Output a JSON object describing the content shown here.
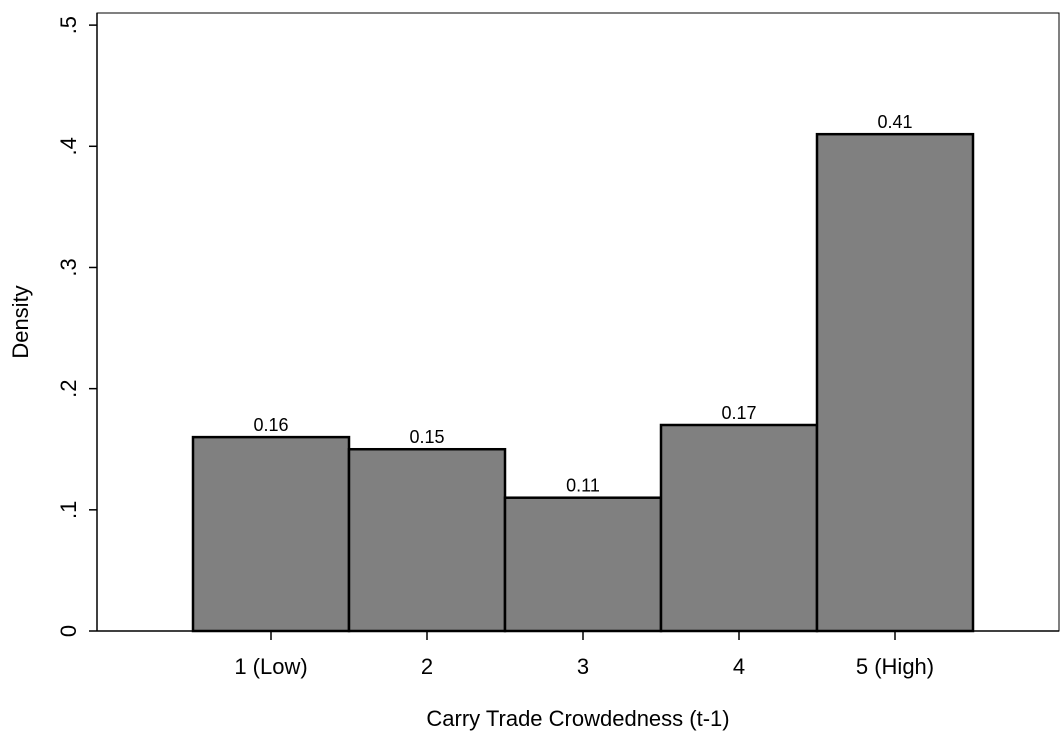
{
  "chart_data": {
    "type": "bar",
    "x_label": "Carry Trade Crowdedness (t-1)",
    "y_label": "Density",
    "categories": [
      "1 (Low)",
      "2",
      "3",
      "4",
      "5 (High)"
    ],
    "values": [
      0.16,
      0.15,
      0.11,
      0.17,
      0.41
    ],
    "color": "#808080",
    "ylim": [
      0,
      0.51
    ],
    "yticks": [
      0,
      {
        "value": 0.1,
        "label": ".1"
      },
      {
        "value": 0.2,
        "label": ".2"
      },
      {
        "value": 0.3,
        "label": ".3"
      },
      {
        "value": 0.4,
        "label": ".4"
      },
      {
        "value": 0.5,
        "label": ".5"
      }
    ]
  }
}
